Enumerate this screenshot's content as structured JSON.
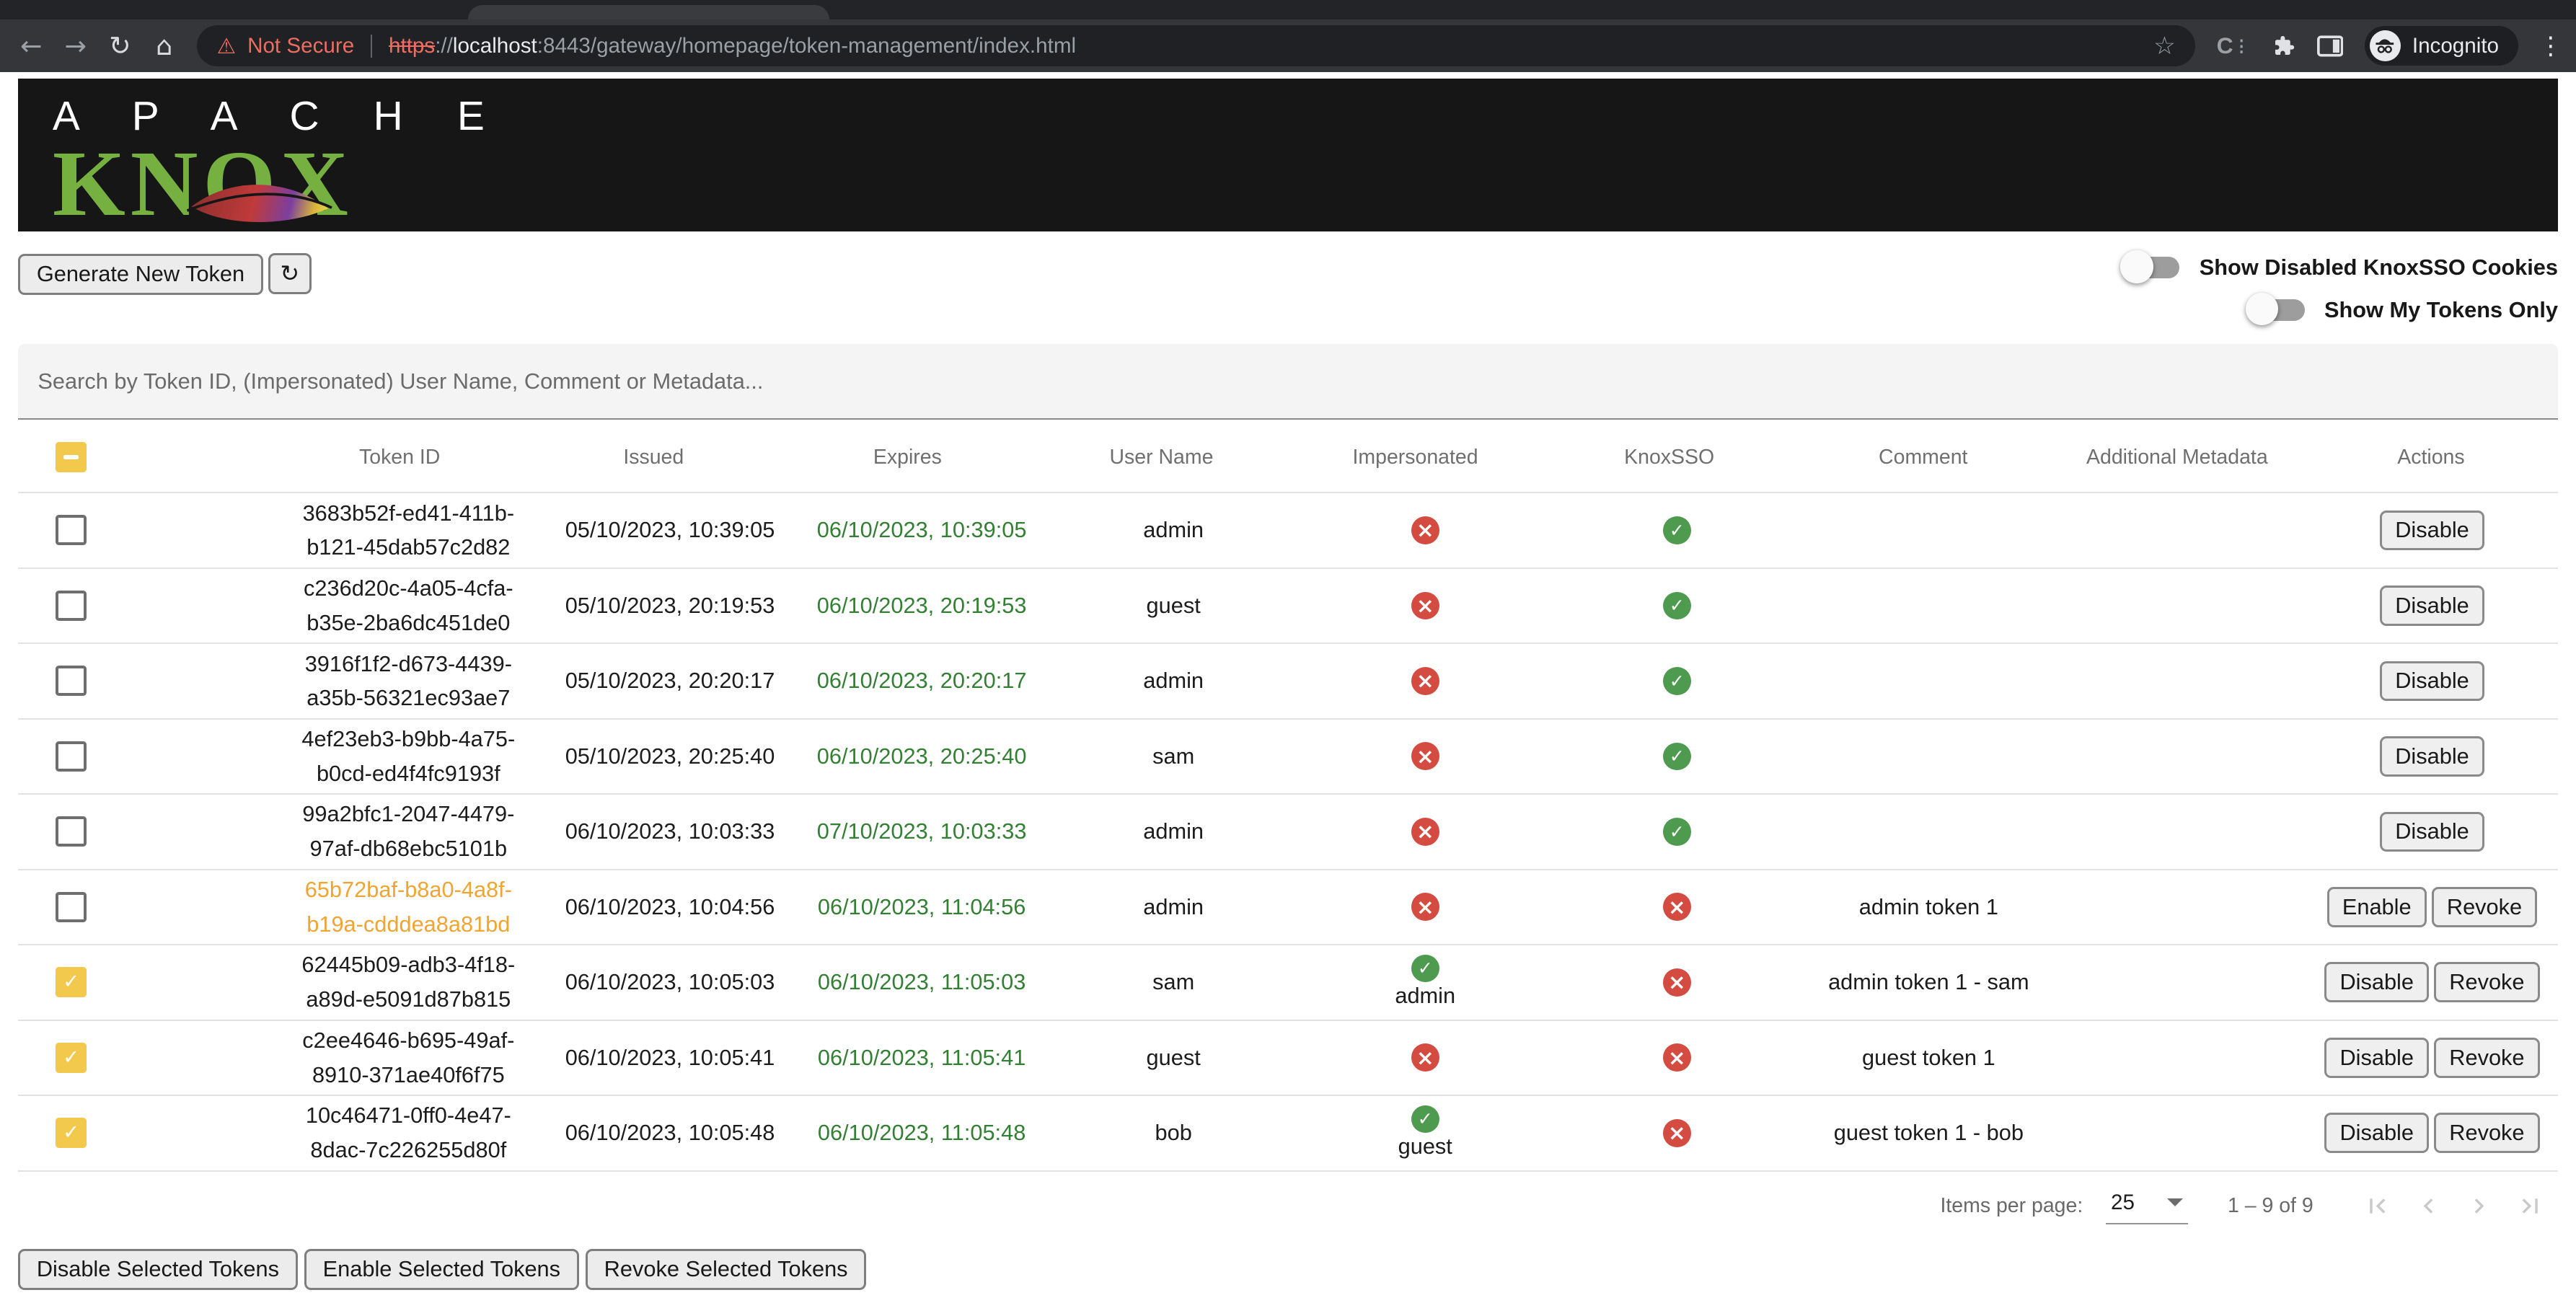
{
  "browser": {
    "security_label": "Not Secure",
    "url_scheme": "https",
    "url_sep": "://",
    "url_host": "localhost",
    "url_path": ":8443/gateway/homepage/token-management/index.html",
    "incognito_label": "Incognito"
  },
  "header": {
    "logo_line1": "A P A C H E",
    "logo_line2": "KNOX"
  },
  "toolbar": {
    "generate_button": "Generate New Token",
    "refresh_icon": "↻",
    "toggles": [
      {
        "label": "Show Disabled KnoxSSO Cookies",
        "on": false
      },
      {
        "label": "Show My Tokens Only",
        "on": false
      }
    ]
  },
  "search": {
    "placeholder": "Search by Token ID, (Impersonated) User Name, Comment or Metadata..."
  },
  "table": {
    "columns": [
      "Token ID",
      "Issued",
      "Expires",
      "User Name",
      "Impersonated",
      "KnoxSSO",
      "Comment",
      "Additional Metadata",
      "Actions"
    ],
    "rows": [
      {
        "token_id": "3683b52f-ed41-411b-b121-45dab57c2d82",
        "token_highlight": false,
        "issued": "05/10/2023, 10:39:05",
        "expires": "06/10/2023, 10:39:05",
        "user": "admin",
        "impersonated": false,
        "impersonated_user": "",
        "knoxsso": true,
        "comment": "",
        "metadata": "",
        "actions": [
          "Disable"
        ],
        "checked": false
      },
      {
        "token_id": "c236d20c-4a05-4cfa-b35e-2ba6dc451de0",
        "token_highlight": false,
        "issued": "05/10/2023, 20:19:53",
        "expires": "06/10/2023, 20:19:53",
        "user": "guest",
        "impersonated": false,
        "impersonated_user": "",
        "knoxsso": true,
        "comment": "",
        "metadata": "",
        "actions": [
          "Disable"
        ],
        "checked": false
      },
      {
        "token_id": "3916f1f2-d673-4439-a35b-56321ec93ae7",
        "token_highlight": false,
        "issued": "05/10/2023, 20:20:17",
        "expires": "06/10/2023, 20:20:17",
        "user": "admin",
        "impersonated": false,
        "impersonated_user": "",
        "knoxsso": true,
        "comment": "",
        "metadata": "",
        "actions": [
          "Disable"
        ],
        "checked": false
      },
      {
        "token_id": "4ef23eb3-b9bb-4a75-b0cd-ed4f4fc9193f",
        "token_highlight": false,
        "issued": "05/10/2023, 20:25:40",
        "expires": "06/10/2023, 20:25:40",
        "user": "sam",
        "impersonated": false,
        "impersonated_user": "",
        "knoxsso": true,
        "comment": "",
        "metadata": "",
        "actions": [
          "Disable"
        ],
        "checked": false
      },
      {
        "token_id": "99a2bfc1-2047-4479-97af-db68ebc5101b",
        "token_highlight": false,
        "issued": "06/10/2023, 10:03:33",
        "expires": "07/10/2023, 10:03:33",
        "user": "admin",
        "impersonated": false,
        "impersonated_user": "",
        "knoxsso": true,
        "comment": "",
        "metadata": "",
        "actions": [
          "Disable"
        ],
        "checked": false
      },
      {
        "token_id": "65b72baf-b8a0-4a8f-b19a-cdddea8a81bd",
        "token_highlight": true,
        "issued": "06/10/2023, 10:04:56",
        "expires": "06/10/2023, 11:04:56",
        "user": "admin",
        "impersonated": false,
        "impersonated_user": "",
        "knoxsso": false,
        "comment": "admin token 1",
        "metadata": "",
        "actions": [
          "Enable",
          "Revoke"
        ],
        "checked": false
      },
      {
        "token_id": "62445b09-adb3-4f18-a89d-e5091d87b815",
        "token_highlight": false,
        "issued": "06/10/2023, 10:05:03",
        "expires": "06/10/2023, 11:05:03",
        "user": "sam",
        "impersonated": true,
        "impersonated_user": "admin",
        "knoxsso": false,
        "comment": "admin token 1 - sam",
        "metadata": "",
        "actions": [
          "Disable",
          "Revoke"
        ],
        "checked": true
      },
      {
        "token_id": "c2ee4646-b695-49af-8910-371ae40f6f75",
        "token_highlight": false,
        "issued": "06/10/2023, 10:05:41",
        "expires": "06/10/2023, 11:05:41",
        "user": "guest",
        "impersonated": false,
        "impersonated_user": "",
        "knoxsso": false,
        "comment": "guest token 1",
        "metadata": "",
        "actions": [
          "Disable",
          "Revoke"
        ],
        "checked": true
      },
      {
        "token_id": "10c46471-0ff0-4e47-8dac-7c226255d80f",
        "token_highlight": false,
        "issued": "06/10/2023, 10:05:48",
        "expires": "06/10/2023, 11:05:48",
        "user": "bob",
        "impersonated": true,
        "impersonated_user": "guest",
        "knoxsso": false,
        "comment": "guest token 1 - bob",
        "metadata": "",
        "actions": [
          "Disable",
          "Revoke"
        ],
        "checked": true
      }
    ]
  },
  "paginator": {
    "items_per_page_label": "Items per page:",
    "items_per_page": "25",
    "range_label": "1 – 9 of 9"
  },
  "footer": {
    "buttons": [
      "Disable Selected Tokens",
      "Enable Selected Tokens",
      "Revoke Selected Tokens"
    ]
  },
  "colors": {
    "knox_green": "#76b041",
    "amber_checkbox": "#f2c94c",
    "token_disabled": "#f0a432",
    "expires_green": "#337f33",
    "icon_red": "#d34b41",
    "icon_green": "#4e9b4f"
  }
}
